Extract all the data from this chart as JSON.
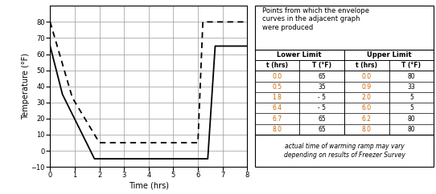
{
  "xlabel": "Time (hrs)",
  "ylabel": "Temperature (°F)",
  "xlim": [
    0,
    8
  ],
  "ylim": [
    -10,
    90
  ],
  "yticks": [
    -10,
    0,
    10,
    20,
    30,
    40,
    50,
    60,
    70,
    80
  ],
  "xticks": [
    0,
    1,
    2,
    3,
    4,
    5,
    6,
    7,
    8
  ],
  "lower_limit": {
    "t": [
      0.0,
      0.5,
      1.8,
      6.4,
      6.7,
      8.0
    ],
    "T": [
      65,
      35,
      -5,
      -5,
      65,
      65
    ]
  },
  "upper_limit": {
    "t": [
      0.0,
      0.9,
      2.0,
      6.0,
      6.2,
      8.0
    ],
    "T": [
      80,
      33,
      5,
      5,
      80,
      80
    ]
  },
  "table_header": "Points from which the envelope\ncurves in the adjacent graph\nwere produced",
  "col_headers": [
    "Lower Limit",
    "Upper Limit"
  ],
  "sub_headers": [
    "t (hrs)",
    "T (°F)",
    "t (hrs)",
    "T (°F)"
  ],
  "table_data": [
    [
      0.0,
      65,
      0.0,
      80
    ],
    [
      0.5,
      35,
      0.9,
      33
    ],
    [
      1.8,
      -5,
      2.0,
      5
    ],
    [
      6.4,
      -5,
      6.0,
      5
    ],
    [
      6.7,
      65,
      6.2,
      80
    ],
    [
      8.0,
      65,
      8.0,
      80
    ]
  ],
  "footer_note": "actual time of warming ramp may vary\ndepending on results of Freezer Survey",
  "bg_color": "#ffffff",
  "line_color": "#000000",
  "table_t_color": "#cc6600",
  "table_T_color": "#000000",
  "grid_color": "#999999"
}
